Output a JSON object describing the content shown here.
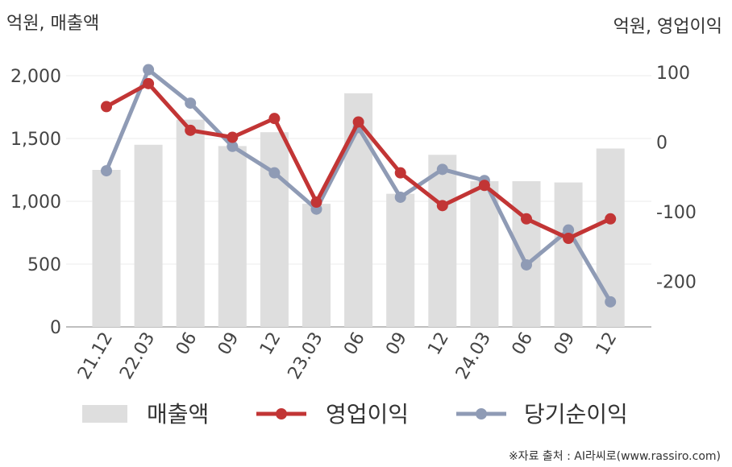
{
  "left_unit": "억원, 매출액",
  "right_unit": "억원, 영업이익",
  "source": "※자료 출처 : AI라씨로(www.rassiro.com)",
  "colors": {
    "bar": "#dedede",
    "operating_profit": "#c23535",
    "net_income": "#8f9bb5",
    "grid": "#ebebeb",
    "axis": "#999999"
  },
  "chart_data": {
    "type": "bar+line",
    "categories": [
      "21.12",
      "22.03",
      "06",
      "09",
      "12",
      "23.03",
      "06",
      "09",
      "12",
      "24.03",
      "06",
      "09",
      "12"
    ],
    "left_axis": {
      "ylim": [
        0,
        2000
      ],
      "ticks": [
        0,
        500,
        1000,
        1500,
        2000
      ],
      "tick_labels": [
        "0",
        "500",
        "1,000",
        "1,500",
        "2,000"
      ]
    },
    "right_axis": {
      "ylim": [
        -265,
        100
      ],
      "ticks": [
        -200,
        -100,
        0,
        100
      ],
      "tick_labels": [
        "-200",
        "-100",
        "0",
        "100"
      ]
    },
    "series": [
      {
        "name": "매출액",
        "type": "bar",
        "axis": "left",
        "values": [
          1250,
          1450,
          1650,
          1440,
          1550,
          980,
          1860,
          1060,
          1370,
          1160,
          1160,
          1150,
          1420
        ]
      },
      {
        "name": "영업이익",
        "type": "line",
        "axis": "right",
        "values": [
          51,
          84,
          17,
          7,
          34,
          -86,
          29,
          -44,
          -91,
          -62,
          -110,
          -138,
          -110
        ]
      },
      {
        "name": "당기순이익",
        "type": "line",
        "axis": "right",
        "values": [
          -41,
          104,
          56,
          -6,
          -44,
          -96,
          21,
          -79,
          -39,
          -55,
          -176,
          -126,
          -229
        ]
      }
    ],
    "legend": "bottom",
    "grid": true
  }
}
